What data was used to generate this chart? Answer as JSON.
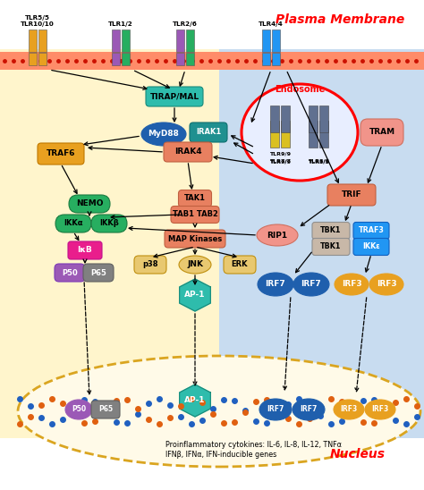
{
  "title": "Plasma Membrane",
  "nucleus_label": "Nucleus",
  "endosome_label": "Endosome",
  "bg_left_color": "#FFF5CC",
  "bg_right_color": "#C8DCF0",
  "membrane_color": "#FF8C69",
  "membrane_border": "#FF4500",
  "nucleus_border": "#DAA520",
  "tirap_label": "TIRAP/MAL",
  "tirap_color": "#2EBCAC",
  "myd88_label": "MyD88",
  "myd88_color": "#1F5FAD",
  "irak1_label": "IRAK1",
  "irak1_color": "#1F9090",
  "irak4_label": "IRAK4",
  "irak4_color": "#E88060",
  "traf6_label": "TRAF6",
  "traf6_color": "#E8A020",
  "nemo_label": "NEMO",
  "nemo_color": "#27AE60",
  "ikka_label": "IKKα",
  "ikkb_label": "IKKβ",
  "ikk_color": "#27AE60",
  "ikb_label": "IκB",
  "ikb_color": "#E91E8C",
  "p50_label": "P50",
  "p65_label": "P65",
  "p50_color": "#9B59B6",
  "p65_color": "#808080",
  "tak1_label": "TAK1",
  "tab_label": "TAB1 TAB2",
  "tak_color": "#E88060",
  "mapk_label": "MAP Kinases",
  "mapk_color": "#E88060",
  "p38_label": "p38",
  "jnk_label": "JNK",
  "erk_label": "ERK",
  "kinase_color": "#E8C870",
  "ap1_label": "AP-1",
  "ap1_color": "#2EBCAC",
  "trif_label": "TRIF",
  "trif_color": "#E88060",
  "rip1_label": "RIP1",
  "rip1_color": "#F1948A",
  "tbk1_label": "TBK1",
  "traf3_label": "TRAF3",
  "ikkeps_label": "IKKε",
  "tbk_color": "#C8B8A8",
  "traf3_color": "#2196F3",
  "ikkeps_color": "#2196F3",
  "irf7_color": "#1F5FAD",
  "irf3_color": "#E8A020",
  "tram_label": "TRAM",
  "tram_color": "#F1948A",
  "nucleus_text": "Proinflammatory cytokines: IL-6, IL-8, IL-12, TNFα\nIFNβ, IFNα, IFN-inducible genes",
  "dna_blue": "#2060C0",
  "dna_orange": "#E06010"
}
